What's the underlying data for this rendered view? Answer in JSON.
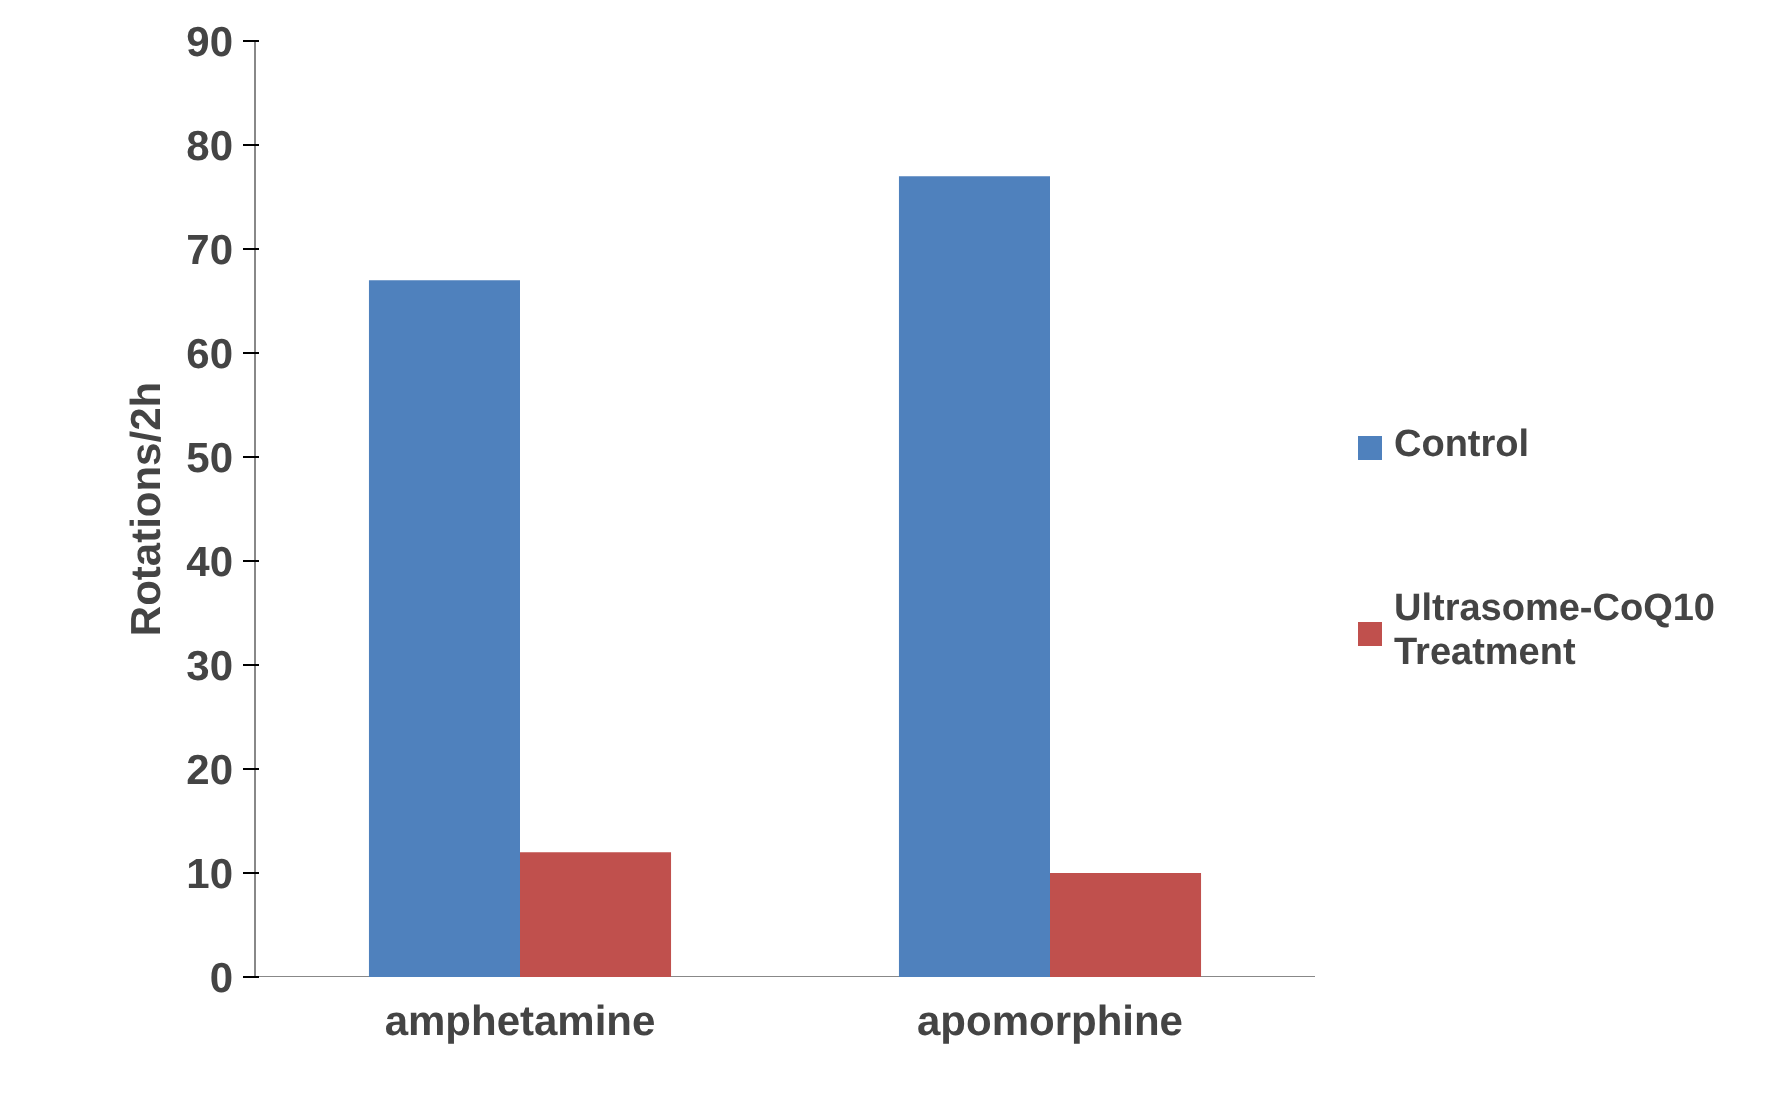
{
  "chart_data": {
    "type": "bar",
    "ylabel": "Rotations/2h",
    "categories": [
      "amphetamine",
      "apomorphine"
    ],
    "series": [
      {
        "name": "Control",
        "color": "#4f81bd",
        "values": [
          67,
          77
        ]
      },
      {
        "name": "Ultrasome-CoQ10 Treatment",
        "color": "#c0504d",
        "values": [
          12,
          10
        ]
      }
    ],
    "ylim": [
      0,
      90
    ],
    "yticks": [
      0,
      10,
      20,
      30,
      40,
      50,
      60,
      70,
      80,
      90
    ],
    "legend": "right"
  }
}
